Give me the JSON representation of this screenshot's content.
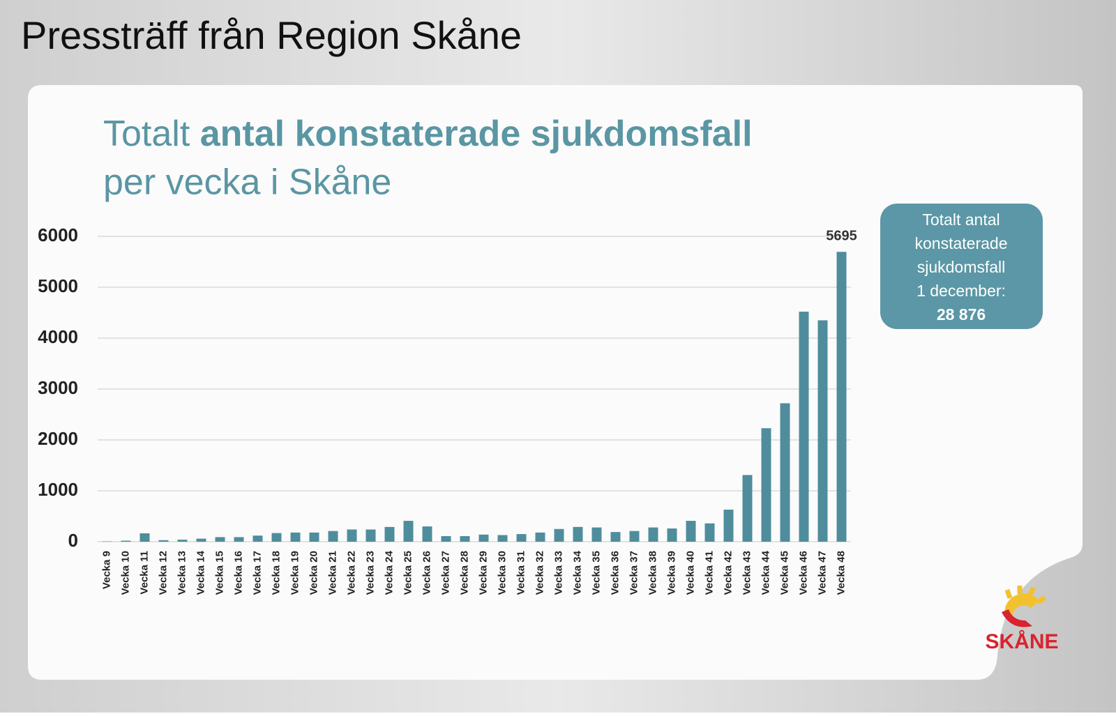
{
  "header": "Pressträff från Region Skåne",
  "chart_data": {
    "type": "bar",
    "title": {
      "lead": "Totalt",
      "bold": "antal konstaterade sjukdomsfall",
      "tail": "per vecka i Skåne"
    },
    "categories": [
      "Vecka 9",
      "Vecka 10",
      "Vecka 11",
      "Vecka 12",
      "Vecka 13",
      "Vecka 14",
      "Vecka 15",
      "Vecka 16",
      "Vecka 17",
      "Vecka 18",
      "Vecka 19",
      "Vecka 20",
      "Vecka 21",
      "Vecka 22",
      "Vecka 23",
      "Vecka 24",
      "Vecka 25",
      "Vecka 26",
      "Vecka 27",
      "Vecka 28",
      "Vecka 29",
      "Vecka 30",
      "Vecka 31",
      "Vecka 32",
      "Vecka 33",
      "Vecka 34",
      "Vecka 35",
      "Vecka 36",
      "Vecka 37",
      "Vecka 38",
      "Vecka 39",
      "Vecka 40",
      "Vecka 41",
      "Vecka 42",
      "Vecka 43",
      "Vecka 44",
      "Vecka 45",
      "Vecka 46",
      "Vecka 47",
      "Vecka 48"
    ],
    "values": [
      5,
      20,
      165,
      30,
      40,
      60,
      90,
      90,
      120,
      170,
      180,
      180,
      210,
      240,
      240,
      290,
      410,
      300,
      110,
      110,
      140,
      130,
      150,
      180,
      250,
      290,
      280,
      190,
      210,
      280,
      260,
      410,
      360,
      630,
      1310,
      2230,
      2720,
      4520,
      4350,
      5695
    ],
    "labeled_indices": [
      39
    ],
    "color": "#4f8d9c",
    "ylim": [
      0,
      6000
    ],
    "yticks": [
      0,
      1000,
      2000,
      3000,
      4000,
      5000,
      6000
    ],
    "grid": true
  },
  "info_box": {
    "lines": [
      "Totalt antal",
      "konstaterade",
      "sjukdomsfall",
      "1 december:"
    ],
    "total": "28 876"
  },
  "logo": "SKÅNE"
}
